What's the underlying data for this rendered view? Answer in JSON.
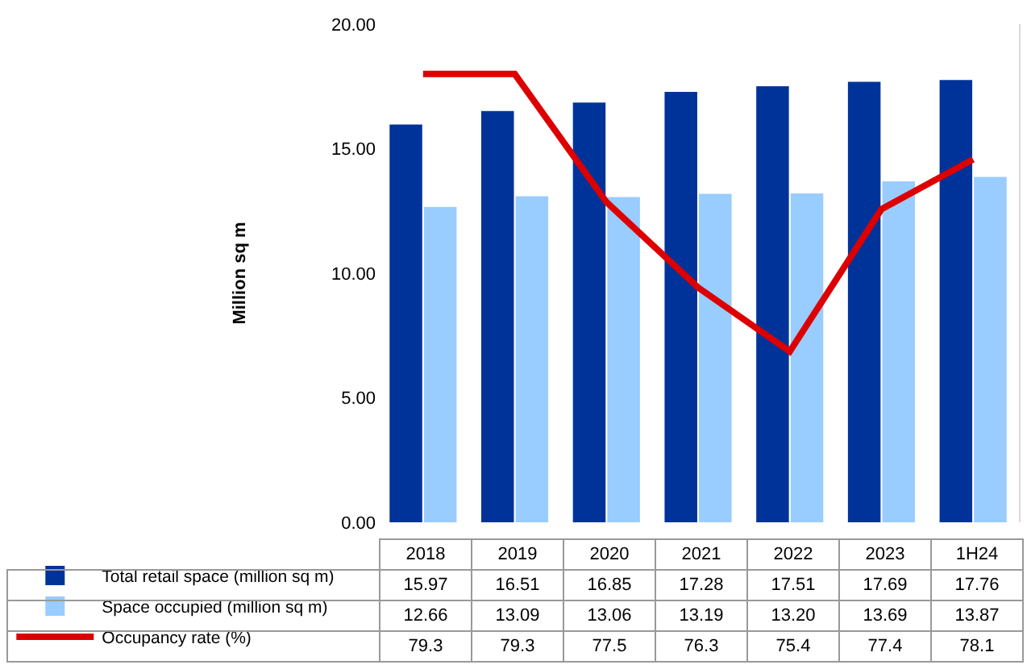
{
  "chart_data": {
    "type": "bar",
    "ylabel": "Million sq m",
    "categories": [
      "2018",
      "2019",
      "2020",
      "2021",
      "2022",
      "2023",
      "1H24"
    ],
    "series": [
      {
        "name": "Total retail space (million sq m)",
        "color": "#003399",
        "values": [
          15.97,
          16.51,
          16.85,
          17.28,
          17.51,
          17.69,
          17.76
        ],
        "value_labels": [
          "15.97",
          "16.51",
          "16.85",
          "17.28",
          "17.51",
          "17.69",
          "17.76"
        ]
      },
      {
        "name": "Space occupied (million sq m)",
        "color": "#99ccff",
        "values": [
          12.66,
          13.09,
          13.06,
          13.19,
          13.2,
          13.69,
          13.87
        ],
        "value_labels": [
          "12.66",
          "13.09",
          "13.06",
          "13.19",
          "13.20",
          "13.69",
          "13.87"
        ]
      },
      {
        "name": "Occupancy rate (%)",
        "type": "line",
        "axis": "y2",
        "color": "#dd0000",
        "values": [
          79.3,
          79.3,
          77.5,
          76.3,
          75.4,
          77.4,
          78.1
        ],
        "value_labels": [
          "79.3",
          "79.3",
          "77.5",
          "76.3",
          "75.4",
          "77.4",
          "78.1"
        ]
      }
    ],
    "ylim": [
      0,
      20
    ],
    "yticks": [
      {
        "value": 0,
        "label": "0.00"
      },
      {
        "value": 5,
        "label": "5.00"
      },
      {
        "value": 10,
        "label": "10.00"
      },
      {
        "value": 15,
        "label": "15.00"
      },
      {
        "value": 20,
        "label": "20.00"
      }
    ],
    "y2lim": [
      73,
      80
    ],
    "grid": false,
    "legend": "bottom left"
  }
}
